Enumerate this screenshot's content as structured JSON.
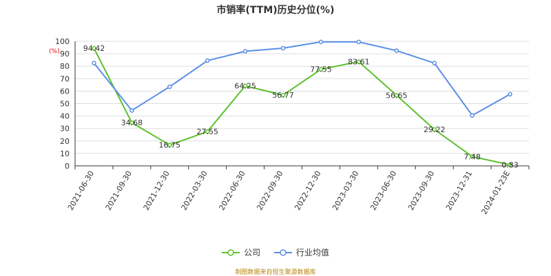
{
  "chart_data": {
    "type": "line",
    "title": "市销率(TTM)历史分位(%)",
    "unit": "(%)",
    "categories": [
      "2021-06-30",
      "2021-09-30",
      "2021-12-30",
      "2022-03-30",
      "2022-06-30",
      "2022-09-30",
      "2022-12-30",
      "2023-03-30",
      "2023-06-30",
      "2023-09-30",
      "2023-12-31",
      "2024-01-23E"
    ],
    "series": [
      {
        "name": "公司",
        "color": "#5cc02b",
        "values": [
          94.42,
          34.68,
          16.75,
          27.55,
          64.25,
          56.77,
          77.55,
          83.61,
          56.65,
          29.22,
          7.48,
          0.83
        ],
        "data_labels": true
      },
      {
        "name": "行业均值",
        "color": "#5b8ee6",
        "values": [
          82.5,
          44.5,
          63.5,
          84.5,
          92.0,
          94.5,
          99.5,
          99.5,
          92.5,
          82.5,
          40.5,
          57.5
        ],
        "data_labels": false
      }
    ],
    "ylim": [
      0,
      100
    ],
    "yticks": [
      0,
      10,
      20,
      30,
      40,
      50,
      60,
      70,
      80,
      90,
      100
    ],
    "grid": true,
    "legend": "bottom-center"
  },
  "footer": {
    "source": "制图数据来自恒生聚源数据库"
  }
}
